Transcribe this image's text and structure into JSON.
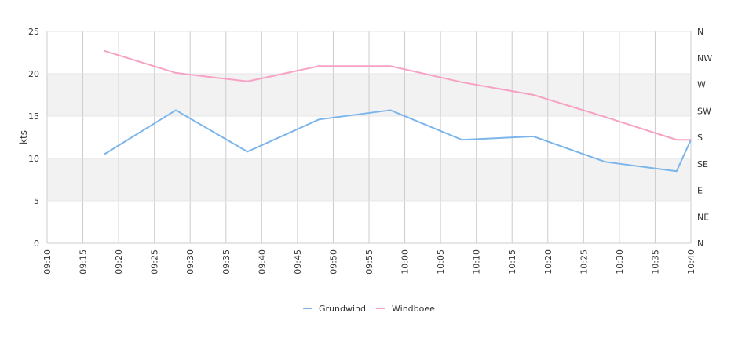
{
  "chart_data": {
    "type": "line",
    "ylabel": "kts",
    "ylim": [
      0,
      25
    ],
    "y_ticks": [
      "0",
      "5",
      "10",
      "15",
      "20",
      "25"
    ],
    "x_ticks": [
      "09:10",
      "09:15",
      "09:20",
      "09:25",
      "09:30",
      "09:35",
      "09:40",
      "09:45",
      "09:50",
      "09:55",
      "10:00",
      "10:05",
      "10:10",
      "10:15",
      "10:20",
      "10:25",
      "10:30",
      "10:35",
      "10:40"
    ],
    "right_axis_ticks": [
      "N",
      "NE",
      "E",
      "SE",
      "S",
      "SW",
      "W",
      "NW",
      "N"
    ],
    "grid": true,
    "legend_position": "bottom",
    "x": [
      "09:18",
      "09:28",
      "09:38",
      "09:48",
      "09:58",
      "10:08",
      "10:18",
      "10:28",
      "10:38",
      "10:40"
    ],
    "series": [
      {
        "name": "Grundwind",
        "color": "#7cb5ec",
        "values": [
          10.5,
          15.7,
          10.8,
          14.6,
          15.7,
          12.2,
          12.6,
          9.6,
          8.5,
          12.2
        ]
      },
      {
        "name": "Windboee",
        "color": "#f7a1c4",
        "values": [
          22.7,
          20.1,
          19.1,
          20.9,
          20.9,
          19.0,
          17.5,
          14.9,
          12.2,
          12.2
        ]
      }
    ]
  }
}
